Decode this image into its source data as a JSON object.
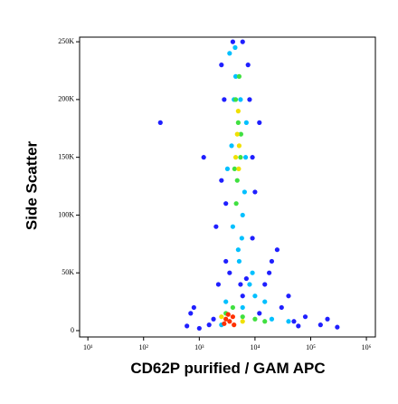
{
  "chart_data": {
    "type": "scatter",
    "x_label": "CD62P purified / GAM APC",
    "y_label": "Side Scatter",
    "x_scale": "log",
    "xlim": [
      7.1,
      1450000
    ],
    "xticks": [
      {
        "value": 10,
        "label": "10¹"
      },
      {
        "value": 100,
        "label": "10²"
      },
      {
        "value": 1000,
        "label": "10³"
      },
      {
        "value": 10000,
        "label": "10⁴"
      },
      {
        "value": 100000,
        "label": "10⁵"
      },
      {
        "value": 1000000,
        "label": "10⁶"
      }
    ],
    "ylim": [
      -5500,
      254000
    ],
    "yticks": [
      0,
      {
        "value": 50000,
        "label": "50K"
      },
      {
        "value": 100000,
        "label": "100K"
      },
      {
        "value": 150000,
        "label": "150K"
      },
      {
        "value": 200000,
        "label": "200K"
      },
      {
        "value": 250000,
        "label": "250K"
      }
    ],
    "series": [
      {
        "color": "#1f1fff",
        "x": [
          200,
          800,
          1200,
          1500,
          2000,
          2500,
          3000,
          6000,
          8000,
          10000,
          15000,
          20000,
          30000,
          50000,
          80000,
          150000,
          300000,
          1000,
          2200,
          9000,
          12000,
          25000,
          40000,
          7000,
          4000,
          2500,
          3000,
          9000,
          6000,
          1800,
          600,
          3500,
          5500,
          2800,
          7500,
          12000,
          60000,
          200000,
          18000,
          700
        ],
        "y": [
          180000,
          20000,
          150000,
          5000,
          90000,
          230000,
          60000,
          250000,
          200000,
          120000,
          40000,
          60000,
          20000,
          8000,
          12000,
          5000,
          3000,
          2000,
          40000,
          80000,
          180000,
          70000,
          30000,
          45000,
          250000,
          130000,
          110000,
          150000,
          30000,
          10000,
          4000,
          50000,
          40000,
          200000,
          230000,
          15000,
          4000,
          10000,
          50000,
          15000
        ]
      },
      {
        "color": "#00c0ff",
        "x": [
          3500,
          4500,
          5500,
          6500,
          4000,
          5000,
          6000,
          3800,
          5200,
          7000,
          4200,
          8000,
          10000,
          15000,
          6000,
          3000,
          2500,
          20000,
          40000,
          9000,
          3200,
          4400,
          6800,
          5800
        ],
        "y": [
          240000,
          220000,
          200000,
          120000,
          90000,
          70000,
          100000,
          160000,
          60000,
          180000,
          200000,
          40000,
          30000,
          25000,
          20000,
          25000,
          5000,
          10000,
          8000,
          50000,
          140000,
          245000,
          150000,
          80000
        ]
      },
      {
        "color": "#40e040",
        "x": [
          4500,
          5000,
          5500,
          4800,
          5200,
          4600,
          3000,
          4000,
          6000,
          10000,
          15000,
          4300,
          5600
        ],
        "y": [
          200000,
          180000,
          150000,
          130000,
          220000,
          110000,
          15000,
          20000,
          12000,
          10000,
          8000,
          140000,
          170000
        ]
      },
      {
        "color": "#f0e000",
        "x": [
          4800,
          5200,
          5000,
          4500,
          2500,
          6000,
          5100
        ],
        "y": [
          170000,
          160000,
          190000,
          150000,
          12000,
          8000,
          140000
        ]
      },
      {
        "color": "#ff3000",
        "x": [
          3000,
          3500,
          4000,
          2800,
          4200,
          3300
        ],
        "y": [
          10000,
          8000,
          12000,
          6000,
          5000,
          14000
        ]
      }
    ]
  }
}
